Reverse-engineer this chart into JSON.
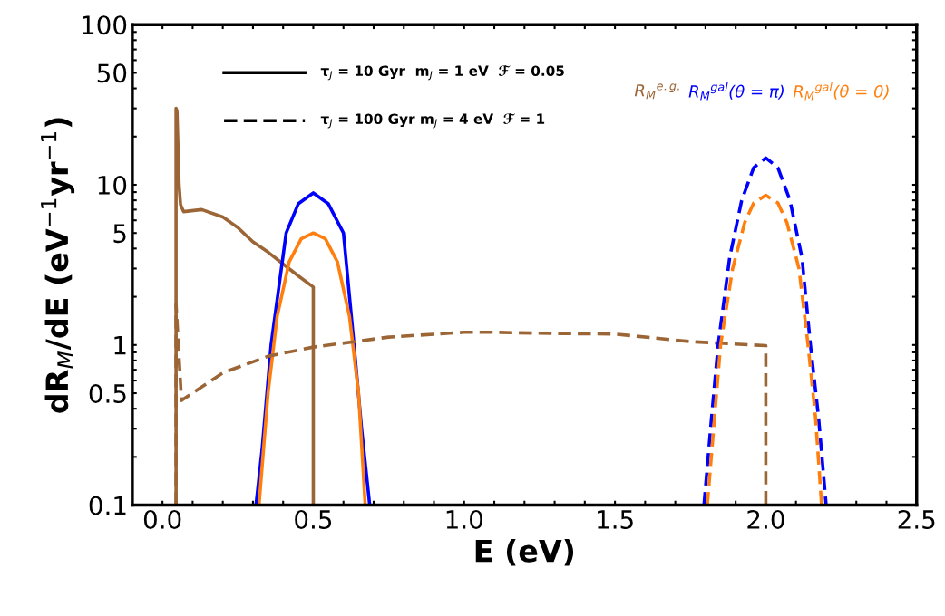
{
  "chart_data": {
    "type": "line",
    "xlabel": "E (eV)",
    "ylabel": "dR$_{M}$/dE (eV$^{−1}$yr$^{−1}$)",
    "log": "y",
    "xlim": [
      -0.1,
      2.5
    ],
    "ylim": [
      0.1,
      100
    ],
    "xticks": [
      {
        "value": 0.0,
        "label": "0.0"
      },
      {
        "value": 0.1,
        "label": null
      },
      {
        "value": 0.2,
        "label": null
      },
      {
        "value": 0.3,
        "label": null
      },
      {
        "value": 0.4,
        "label": null
      },
      {
        "value": 0.5,
        "label": "0.5"
      },
      {
        "value": 0.6,
        "label": null
      },
      {
        "value": 0.7,
        "label": null
      },
      {
        "value": 0.8,
        "label": null
      },
      {
        "value": 0.9,
        "label": null
      },
      {
        "value": 1.0,
        "label": "1.0"
      },
      {
        "value": 1.1,
        "label": null
      },
      {
        "value": 1.2,
        "label": null
      },
      {
        "value": 1.3,
        "label": null
      },
      {
        "value": 1.4,
        "label": null
      },
      {
        "value": 1.5,
        "label": "1.5"
      },
      {
        "value": 1.6,
        "label": null
      },
      {
        "value": 1.7,
        "label": null
      },
      {
        "value": 1.8,
        "label": null
      },
      {
        "value": 1.9,
        "label": null
      },
      {
        "value": 2.0,
        "label": "2.0"
      },
      {
        "value": 2.1,
        "label": null
      },
      {
        "value": 2.2,
        "label": null
      },
      {
        "value": 2.3,
        "label": null
      },
      {
        "value": 2.4,
        "label": null
      },
      {
        "value": 2.5,
        "label": "2.5"
      }
    ],
    "yticks": [
      0.1,
      {
        "value": 0.2,
        "label": null
      },
      {
        "value": 0.3,
        "label": null
      },
      {
        "value": 0.4,
        "label": null
      },
      0.5,
      {
        "value": 0.6,
        "label": null
      },
      {
        "value": 0.7,
        "label": null
      },
      {
        "value": 0.8,
        "label": null
      },
      {
        "value": 0.9,
        "label": null
      },
      1,
      {
        "value": 2,
        "label": null
      },
      {
        "value": 3,
        "label": null
      },
      {
        "value": 4,
        "label": null
      },
      5,
      {
        "value": 6,
        "label": null
      },
      {
        "value": 7,
        "label": null
      },
      {
        "value": 8,
        "label": null
      },
      {
        "value": 9,
        "label": null
      },
      10,
      {
        "value": 20,
        "label": null
      },
      {
        "value": 30,
        "label": null
      },
      {
        "value": 40,
        "label": null
      },
      50,
      {
        "value": 60,
        "label": null
      },
      {
        "value": 70,
        "label": null
      },
      {
        "value": 80,
        "label": null
      },
      {
        "value": 90,
        "label": null
      },
      100
    ],
    "grid": false,
    "marker": "none",
    "series": [
      {
        "color": "#9c6535",
        "line_style": "solid",
        "x": [
          0.045,
          0.045,
          0.048,
          0.055,
          0.06,
          0.07,
          0.13,
          0.2,
          0.25,
          0.3,
          0.35,
          0.4,
          0.45,
          0.5,
          0.5
        ],
        "values": [
          0.1,
          30,
          29,
          10,
          7.5,
          6.8,
          7.0,
          6.3,
          5.4,
          4.4,
          3.8,
          3.2,
          2.7,
          2.3,
          0.1
        ]
      },
      {
        "color": "#0000ff",
        "line_style": "solid",
        "x": [
          0.31,
          0.33,
          0.36,
          0.41,
          0.45,
          0.5,
          0.55,
          0.6,
          0.635,
          0.66,
          0.687
        ],
        "values": [
          0.1,
          0.22,
          1.0,
          5,
          7.6,
          8.9,
          7.6,
          5,
          1.0,
          0.3,
          0.1
        ]
      },
      {
        "color": "#ff7f0e",
        "line_style": "solid",
        "x": [
          0.32,
          0.35,
          0.38,
          0.42,
          0.46,
          0.5,
          0.54,
          0.58,
          0.62,
          0.65,
          0.672
        ],
        "values": [
          0.1,
          0.5,
          1.5,
          3.3,
          4.6,
          5,
          4.6,
          3.3,
          1.5,
          0.5,
          0.1
        ]
      },
      {
        "color": "#9c6535",
        "line_style": "dashed",
        "x": [
          0.045,
          0.045,
          0.063,
          0.2,
          0.35,
          0.5,
          0.75,
          1.0,
          1.1,
          1.3,
          1.5,
          1.75,
          2.0,
          2.0
        ],
        "values": [
          0.1,
          1.8,
          0.45,
          0.67,
          0.85,
          0.97,
          1.12,
          1.2,
          1.2,
          1.18,
          1.17,
          1.05,
          0.99,
          0.1
        ]
      },
      {
        "color": "#0000ff",
        "line_style": "dashed",
        "x": [
          1.795,
          1.82,
          1.842,
          1.88,
          1.92,
          1.96,
          2.0,
          2.04,
          2.08,
          2.12,
          2.148,
          2.175,
          2.2
        ],
        "values": [
          0.1,
          0.35,
          1,
          3.5,
          8,
          12.8,
          14.7,
          12.8,
          8,
          3.5,
          1,
          0.35,
          0.1
        ]
      },
      {
        "color": "#ff7f0e",
        "line_style": "dashed",
        "x": [
          1.806,
          1.83,
          1.85,
          1.89,
          1.93,
          1.96,
          2.0,
          2.04,
          2.07,
          2.11,
          2.14,
          2.165,
          2.185
        ],
        "values": [
          0.1,
          0.35,
          1,
          3,
          5.8,
          7.7,
          8.6,
          7.7,
          5.8,
          3,
          1,
          0.35,
          0.1
        ]
      }
    ],
    "annotations": [
      "τ$_{J}$ = 10 Gyr  m$_{J}$ = 1 eV  ℱ = 0.05",
      "τ$_{J}$ = 100 Gyr m$_{J}$ = 4 eV  ℱ = 1",
      "R$_{M}$$^{e.g.}$",
      "R$_{M}$$^{gal}$(θ = π)",
      "R$_{M}$$^{gal}$(θ = 0)"
    ]
  }
}
